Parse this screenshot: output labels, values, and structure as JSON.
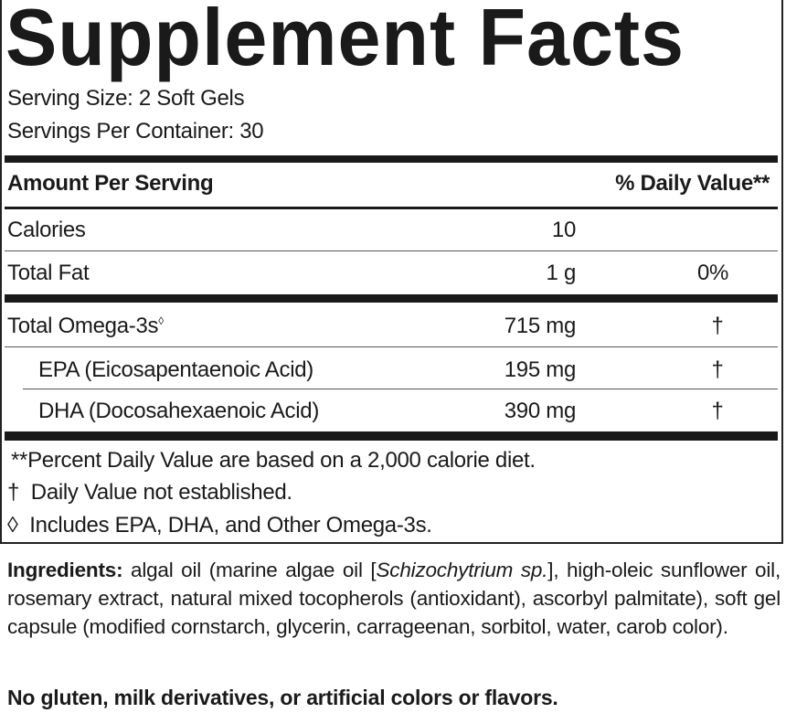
{
  "title": "Supplement Facts",
  "serving_size": "Serving Size: 2 Soft Gels",
  "servings_per_container": "Servings Per Container: 30",
  "header": {
    "amount": "Amount Per Serving",
    "dv": "% Daily Value**"
  },
  "rows": [
    {
      "name": "Calories",
      "amount": "10",
      "dv": ""
    },
    {
      "name": "Total Fat",
      "amount": "1 g",
      "dv": "0%"
    },
    {
      "name": "Total Omega-3s",
      "sup": "◊",
      "amount": "715 mg",
      "dv": "†"
    },
    {
      "name": "EPA (Eicosapentaenoic Acid)",
      "amount": "195 mg",
      "dv": "†"
    },
    {
      "name": "DHA (Docosahexaenoic Acid)",
      "amount": "390 mg",
      "dv": "†"
    }
  ],
  "footnotes": [
    "**Percent Daily Value are based on a 2,000 calorie diet.",
    "†  Daily Value not established.",
    "◊  Includes EPA, DHA, and Other Omega-3s."
  ],
  "ingredients": {
    "label": "Ingredients:",
    "text_before": " algal oil (marine algae oil [",
    "italic": "Schizochytrium sp.",
    "text_after": "], high-oleic sunflower oil, rosemary extract, natural mixed tocopherols (antioxidant), ascorbyl palmitate), soft gel capsule (modified cornstarch, glycerin, carrageenan, sorbitol, water, carob color)."
  },
  "free_from": "No gluten, milk derivatives, or artificial colors or flavors."
}
